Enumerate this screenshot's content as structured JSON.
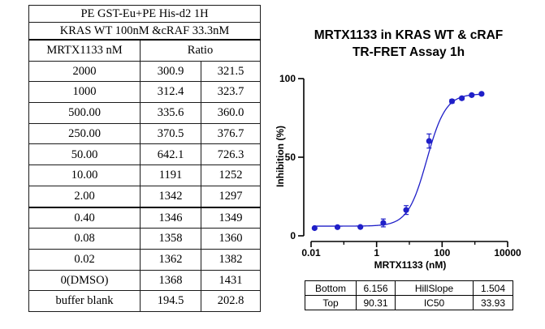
{
  "table": {
    "title_line1": "PE GST-Eu+PE His-d2 1H",
    "title_line2": "KRAS WT 100nM &cRAF 33.3nM",
    "col_header_conc": "MRTX1133 nM",
    "col_header_ratio": "Ratio",
    "rows": [
      {
        "conc": "2000",
        "r1": "300.9",
        "r2": "321.5"
      },
      {
        "conc": "1000",
        "r1": "312.4",
        "r2": "323.7"
      },
      {
        "conc": "500.00",
        "r1": "335.6",
        "r2": "360.0"
      },
      {
        "conc": "250.00",
        "r1": "370.5",
        "r2": "376.7"
      },
      {
        "conc": "50.00",
        "r1": "642.1",
        "r2": "726.3"
      },
      {
        "conc": "10.00",
        "r1": "1191",
        "r2": "1252"
      },
      {
        "conc": "2.00",
        "r1": "1342",
        "r2": "1297"
      },
      {
        "conc": "0.40",
        "r1": "1346",
        "r2": "1349"
      },
      {
        "conc": "0.08",
        "r1": "1358",
        "r2": "1360"
      },
      {
        "conc": "0.02",
        "r1": "1362",
        "r2": "1382"
      },
      {
        "conc": "0(DMSO)",
        "r1": "1368",
        "r2": "1431"
      },
      {
        "conc": "buffer blank",
        "r1": "194.5",
        "r2": "202.8"
      }
    ]
  },
  "chart_data": {
    "type": "scatter",
    "title": "MRTX1133 in KRAS WT & cRAF",
    "subtitle": "TR-FRET Assay 1h",
    "xlabel": "MRTX1133 (nM)",
    "ylabel": "Inhibition (%)",
    "xscale": "log",
    "xlim": [
      0.01,
      10000
    ],
    "ylim": [
      0,
      100
    ],
    "xticks": [
      0.01,
      1,
      100,
      10000
    ],
    "xtick_labels": [
      "0.01",
      "1",
      "100",
      "10000"
    ],
    "yticks": [
      0,
      50,
      100
    ],
    "ytick_labels": [
      "0",
      "50",
      "100"
    ],
    "series": [
      {
        "name": "MRTX1133",
        "color": "#1f1fc8",
        "x": [
          0.0128,
          0.064,
          0.32,
          1.6,
          8,
          40,
          200,
          400,
          800,
          1600
        ],
        "y": [
          4.9,
          5.5,
          5.6,
          8.2,
          16.4,
          60.3,
          85.6,
          87.5,
          89.5,
          90.3
        ],
        "err": [
          0.6,
          0.5,
          0.5,
          2.5,
          2.8,
          4.5,
          1.2,
          1.0,
          0.8,
          0.6
        ]
      }
    ],
    "fit": {
      "model": "4PL",
      "bottom": 6.156,
      "top": 90.31,
      "ic50": 33.93,
      "hillslope": 1.504
    }
  },
  "fit_table": {
    "row1": [
      {
        "label": "Bottom",
        "value": "6.156"
      },
      {
        "label": "HillSlope",
        "value": "1.504"
      }
    ],
    "row2": [
      {
        "label": "Top",
        "value": "90.31"
      },
      {
        "label": "IC50",
        "value": "33.93"
      }
    ]
  }
}
